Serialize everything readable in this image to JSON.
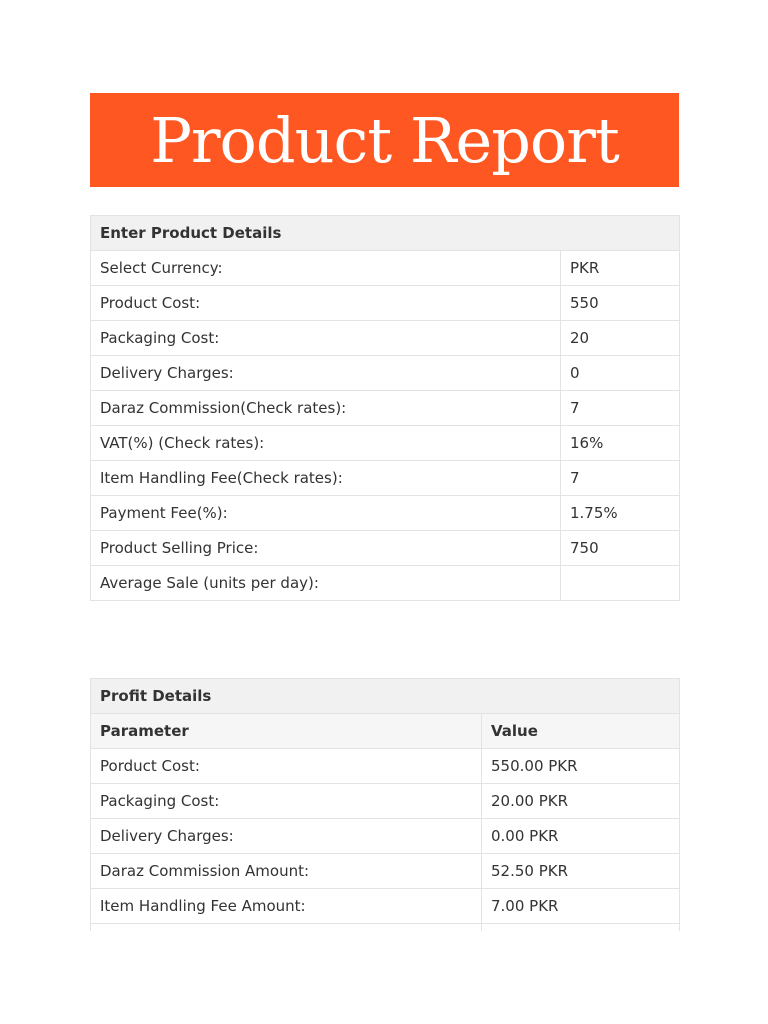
{
  "banner": {
    "title": "Product Report",
    "color": "#ff5722"
  },
  "details": {
    "heading": "Enter Product Details",
    "rows": [
      {
        "label": "Select Currency:",
        "value": "PKR"
      },
      {
        "label": "Product Cost:",
        "value": "550"
      },
      {
        "label": "Packaging Cost:",
        "value": "20"
      },
      {
        "label": "Delivery Charges:",
        "value": "0"
      },
      {
        "label": "Daraz Commission(Check rates):",
        "value": "7"
      },
      {
        "label": "VAT(%) (Check rates):",
        "value": "16%"
      },
      {
        "label": "Item Handling Fee(Check rates):",
        "value": "7"
      },
      {
        "label": "Payment Fee(%):",
        "value": "1.75%"
      },
      {
        "label": "Product Selling Price:",
        "value": "750"
      },
      {
        "label": "Average Sale (units per day):",
        "value": ""
      }
    ]
  },
  "profit": {
    "heading": "Profit Details",
    "columns": {
      "parameter": "Parameter",
      "value": "Value"
    },
    "rows": [
      {
        "label": "Porduct Cost:",
        "value": "550.00 PKR"
      },
      {
        "label": "Packaging Cost:",
        "value": "20.00 PKR"
      },
      {
        "label": "Delivery Charges:",
        "value": "0.00 PKR"
      },
      {
        "label": "Daraz Commission Amount:",
        "value": "52.50 PKR"
      },
      {
        "label": "Item Handling Fee Amount:",
        "value": "7.00 PKR"
      },
      {
        "label": "",
        "value": ""
      }
    ]
  }
}
